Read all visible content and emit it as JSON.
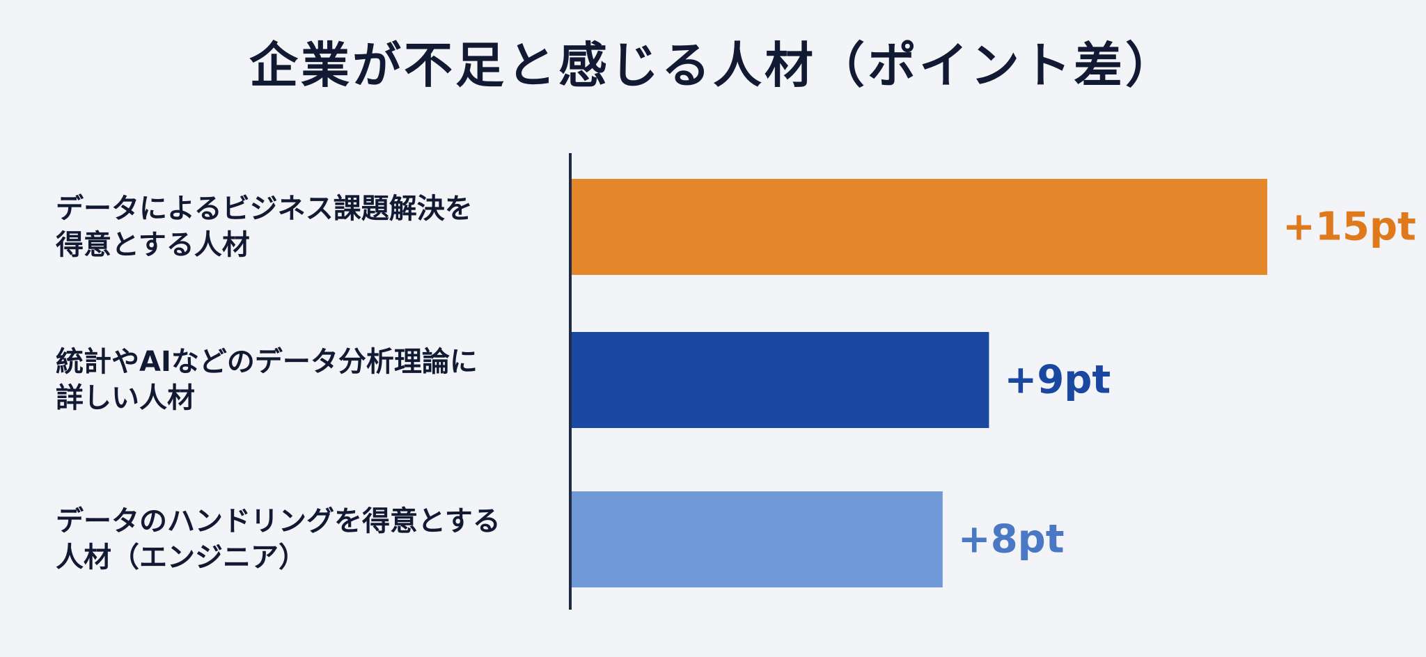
{
  "chart_data": {
    "type": "bar",
    "orientation": "horizontal",
    "title": "企業が不足と感じる人材（ポイント差）",
    "categories": [
      [
        "データによるビジネス課題解決を",
        "得意とする人材"
      ],
      [
        "統計やAIなどのデータ分析理論に",
        "詳しい人材"
      ],
      [
        "データのハンドリングを得意とする",
        "人材（エンジニア）"
      ]
    ],
    "values": [
      15,
      9,
      8
    ],
    "value_labels": [
      "+15pt",
      "+9pt",
      "+8pt"
    ],
    "bar_colors": [
      "#e5872b",
      "#1a47a0",
      "#6e98d6"
    ],
    "value_label_colors": [
      "#df7a1c",
      "#1a47a0",
      "#4a78c4"
    ],
    "xlim": [
      0,
      15
    ],
    "grid": false,
    "legend": "none"
  }
}
